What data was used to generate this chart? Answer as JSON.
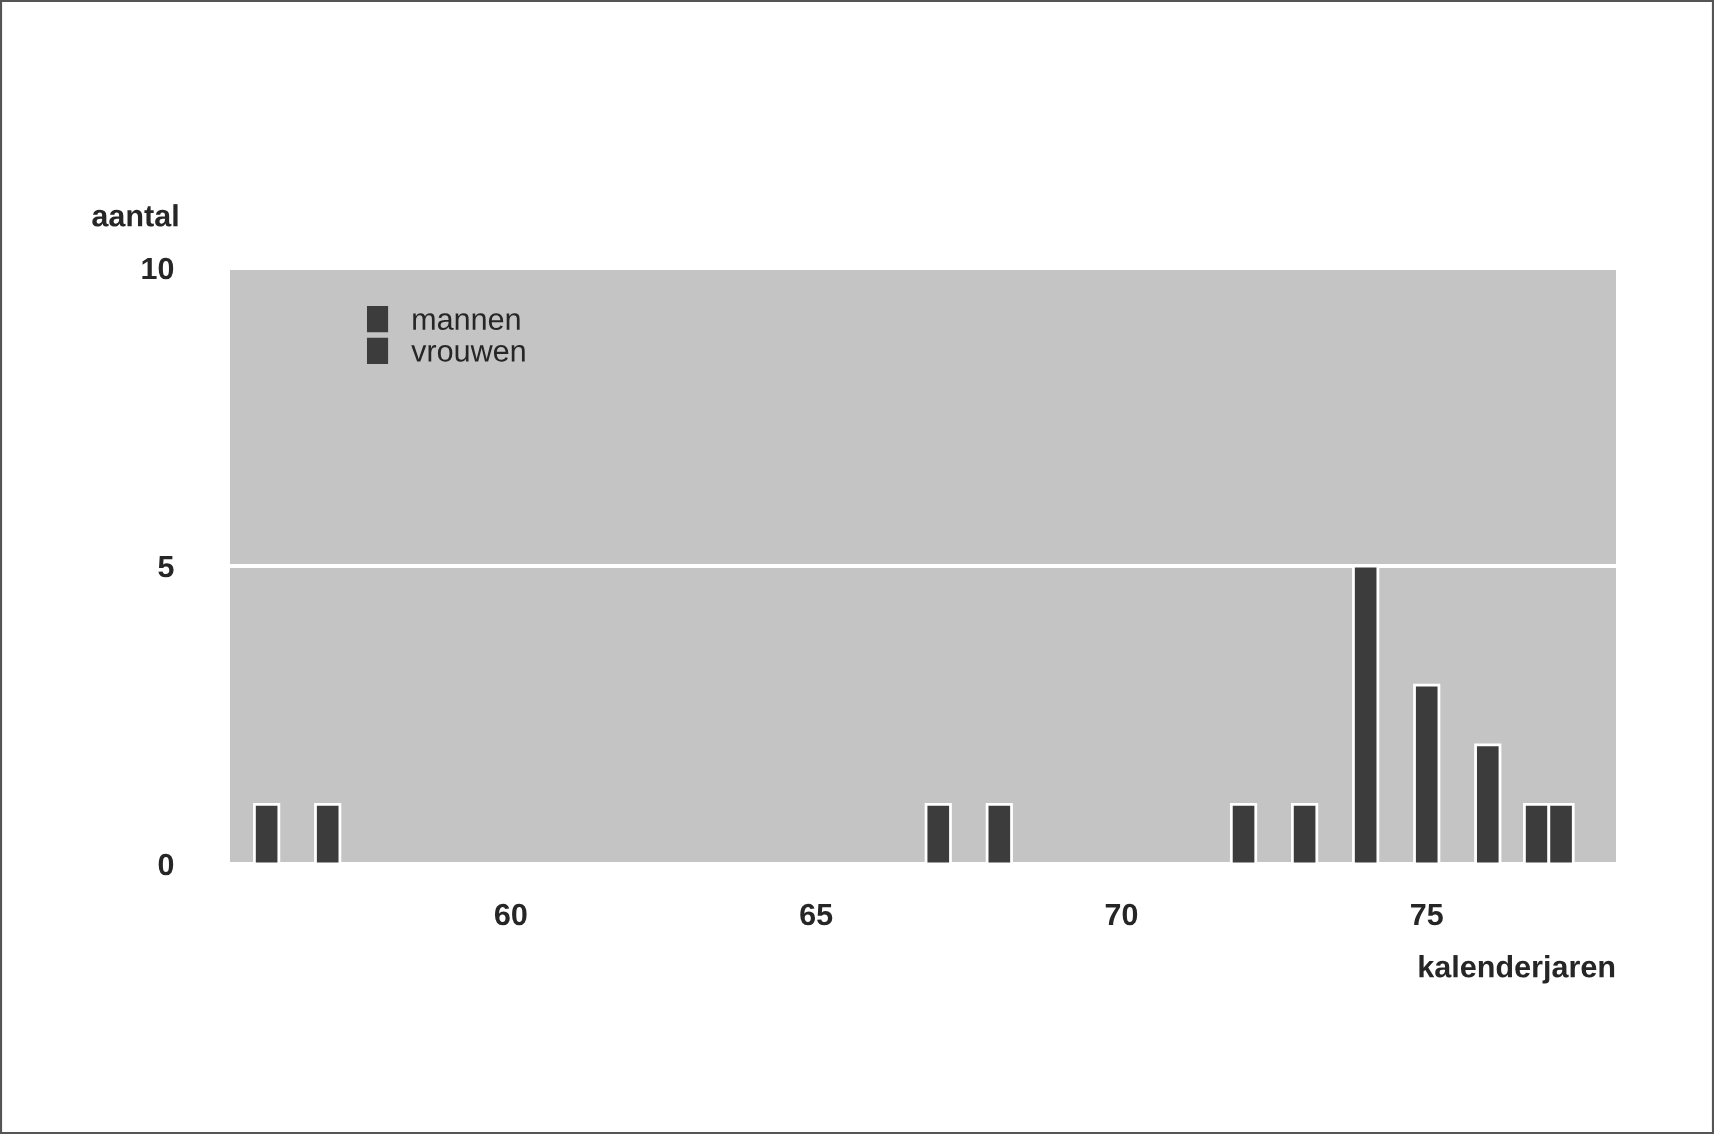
{
  "chart_data": {
    "type": "bar",
    "xlabel": "kalenderjaren",
    "ylabel": "aantal",
    "series": [
      {
        "name": "mannen",
        "color": "#3c3c3c",
        "x": [
          56,
          57,
          67,
          68,
          72,
          73,
          74,
          75,
          76,
          77
        ],
        "values": [
          1,
          1,
          1,
          1,
          1,
          1,
          5,
          3,
          2,
          1
        ]
      },
      {
        "name": "vrouwen",
        "color": "#3c3c3c",
        "x": [
          77
        ],
        "values": [
          1
        ]
      }
    ],
    "xlim": [
      55.4,
      78.1
    ],
    "xticks": [
      60,
      65,
      70,
      75
    ],
    "ylim": [
      0,
      10
    ],
    "yticks": [
      0,
      5,
      10
    ],
    "grid": "y",
    "legend": "top left"
  }
}
